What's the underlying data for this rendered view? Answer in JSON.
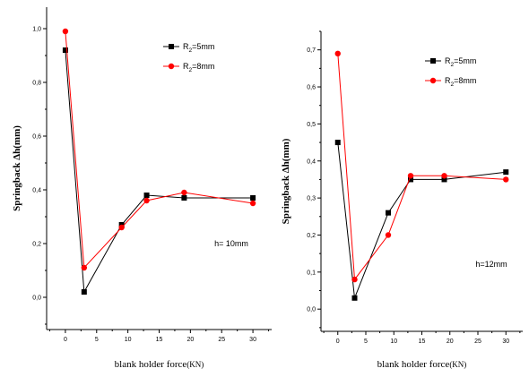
{
  "chart_data": [
    {
      "type": "line",
      "id": "left",
      "x": [
        0,
        3,
        9,
        13,
        19,
        30
      ],
      "series": [
        {
          "name_main": "R",
          "name_sub": "2",
          "name_rest": "=5mm",
          "color": "#000000",
          "marker": "square",
          "values": [
            0.92,
            0.02,
            0.27,
            0.38,
            0.37,
            0.37
          ]
        },
        {
          "name_main": "R",
          "name_sub": "2",
          "name_rest": "=8mm",
          "color": "#ff0000",
          "marker": "circle",
          "values": [
            0.99,
            0.11,
            0.26,
            0.36,
            0.39,
            0.35
          ]
        }
      ],
      "xlabel": "blank holder force",
      "xlabel_unit": "(KN)",
      "ylabel": "Springback Δh(mm)",
      "xlim": [
        -3,
        33
      ],
      "ylim": [
        -0.12,
        1.08
      ],
      "xticks": [
        0,
        5,
        10,
        15,
        20,
        25,
        30
      ],
      "yticks": [
        0.0,
        0.2,
        0.4,
        0.6,
        0.8,
        1.0
      ],
      "ytick_labels": [
        "0,0",
        "0,2",
        "0,4",
        "0,6",
        "0,8",
        "1,0"
      ],
      "annotation": "h= 10mm",
      "legend_position": "top-right"
    },
    {
      "type": "line",
      "id": "right",
      "x": [
        0,
        3,
        9,
        13,
        19,
        30
      ],
      "series": [
        {
          "name_main": "R",
          "name_sub": "2",
          "name_rest": "=5mm",
          "color": "#000000",
          "marker": "square",
          "values": [
            0.45,
            0.03,
            0.26,
            0.35,
            0.35,
            0.37
          ]
        },
        {
          "name_main": "R",
          "name_sub": "2",
          "name_rest": "=8mm",
          "color": "#ff0000",
          "marker": "circle",
          "values": [
            0.69,
            0.08,
            0.2,
            0.36,
            0.36,
            0.35
          ]
        }
      ],
      "xlabel": "blank holder force",
      "xlabel_unit": "(KN)",
      "ylabel": "Springback Δh(mm)",
      "xlim": [
        -3,
        33
      ],
      "ylim": [
        -0.06,
        0.75
      ],
      "xticks": [
        0,
        5,
        10,
        15,
        20,
        25,
        30
      ],
      "yticks": [
        0.0,
        0.1,
        0.2,
        0.3,
        0.4,
        0.5,
        0.6,
        0.7
      ],
      "ytick_labels": [
        "0,0",
        "0,1",
        "0,2",
        "0,3",
        "0,4",
        "0,5",
        "0,6",
        "0,7"
      ],
      "annotation": "h=12mm",
      "legend_position": "top-right"
    }
  ]
}
